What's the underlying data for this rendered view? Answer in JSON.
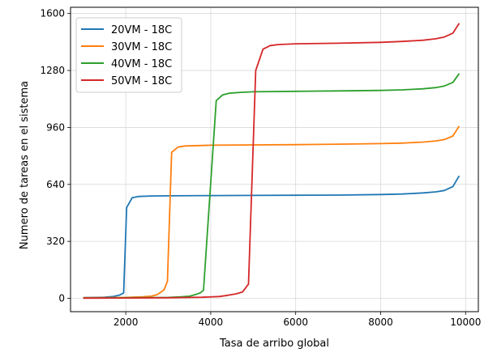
{
  "chart_data": {
    "type": "line",
    "xlabel": "Tasa de arribo global",
    "ylabel": "Numero de tareas en el sistema",
    "xlim": [
      700,
      10300
    ],
    "ylim": [
      -75,
      1635
    ],
    "xticks": [
      2000,
      4000,
      6000,
      8000,
      10000
    ],
    "yticks": [
      0,
      320,
      640,
      960,
      1280,
      1600
    ],
    "grid": true,
    "legend_position": "top-left",
    "series": [
      {
        "name": "20VM - 18C",
        "color": "#1f77b4",
        "points": [
          [
            1000,
            4
          ],
          [
            1300,
            5
          ],
          [
            1500,
            6
          ],
          [
            1700,
            10
          ],
          [
            1850,
            18
          ],
          [
            1950,
            30
          ],
          [
            2020,
            510
          ],
          [
            2150,
            565
          ],
          [
            2300,
            572
          ],
          [
            2600,
            575
          ],
          [
            3000,
            576
          ],
          [
            4000,
            577
          ],
          [
            5000,
            578
          ],
          [
            6000,
            579
          ],
          [
            7000,
            580
          ],
          [
            8000,
            583
          ],
          [
            8500,
            586
          ],
          [
            9000,
            592
          ],
          [
            9300,
            598
          ],
          [
            9500,
            606
          ],
          [
            9700,
            628
          ],
          [
            9850,
            688
          ]
        ]
      },
      {
        "name": "30VM - 18C",
        "color": "#ff7f0e",
        "points": [
          [
            1000,
            3
          ],
          [
            1500,
            4
          ],
          [
            2000,
            5
          ],
          [
            2400,
            8
          ],
          [
            2600,
            12
          ],
          [
            2750,
            22
          ],
          [
            2900,
            48
          ],
          [
            2980,
            95
          ],
          [
            3080,
            820
          ],
          [
            3230,
            850
          ],
          [
            3400,
            856
          ],
          [
            4000,
            860
          ],
          [
            5000,
            862
          ],
          [
            6000,
            863
          ],
          [
            7000,
            866
          ],
          [
            8000,
            869
          ],
          [
            8500,
            872
          ],
          [
            9000,
            878
          ],
          [
            9300,
            884
          ],
          [
            9500,
            892
          ],
          [
            9700,
            912
          ],
          [
            9850,
            968
          ]
        ]
      },
      {
        "name": "40VM - 18C",
        "color": "#2ca02c",
        "points": [
          [
            1000,
            2
          ],
          [
            2000,
            3
          ],
          [
            3000,
            5
          ],
          [
            3300,
            8
          ],
          [
            3500,
            12
          ],
          [
            3650,
            22
          ],
          [
            3750,
            30
          ],
          [
            3830,
            45
          ],
          [
            4130,
            1110
          ],
          [
            4280,
            1143
          ],
          [
            4430,
            1152
          ],
          [
            4700,
            1157
          ],
          [
            5000,
            1160
          ],
          [
            6000,
            1163
          ],
          [
            7000,
            1165
          ],
          [
            8000,
            1168
          ],
          [
            8500,
            1171
          ],
          [
            9000,
            1177
          ],
          [
            9300,
            1184
          ],
          [
            9500,
            1193
          ],
          [
            9700,
            1213
          ],
          [
            9850,
            1263
          ]
        ]
      },
      {
        "name": "50VM - 18C",
        "color": "#d62728",
        "points": [
          [
            1000,
            1
          ],
          [
            2000,
            2
          ],
          [
            3000,
            3
          ],
          [
            3800,
            6
          ],
          [
            4200,
            10
          ],
          [
            4400,
            17
          ],
          [
            4600,
            25
          ],
          [
            4750,
            36
          ],
          [
            4890,
            80
          ],
          [
            5060,
            1280
          ],
          [
            5230,
            1400
          ],
          [
            5400,
            1420
          ],
          [
            5600,
            1426
          ],
          [
            6000,
            1430
          ],
          [
            7000,
            1433
          ],
          [
            8000,
            1438
          ],
          [
            8500,
            1443
          ],
          [
            9000,
            1450
          ],
          [
            9300,
            1458
          ],
          [
            9500,
            1468
          ],
          [
            9700,
            1490
          ],
          [
            9850,
            1545
          ]
        ]
      }
    ]
  }
}
